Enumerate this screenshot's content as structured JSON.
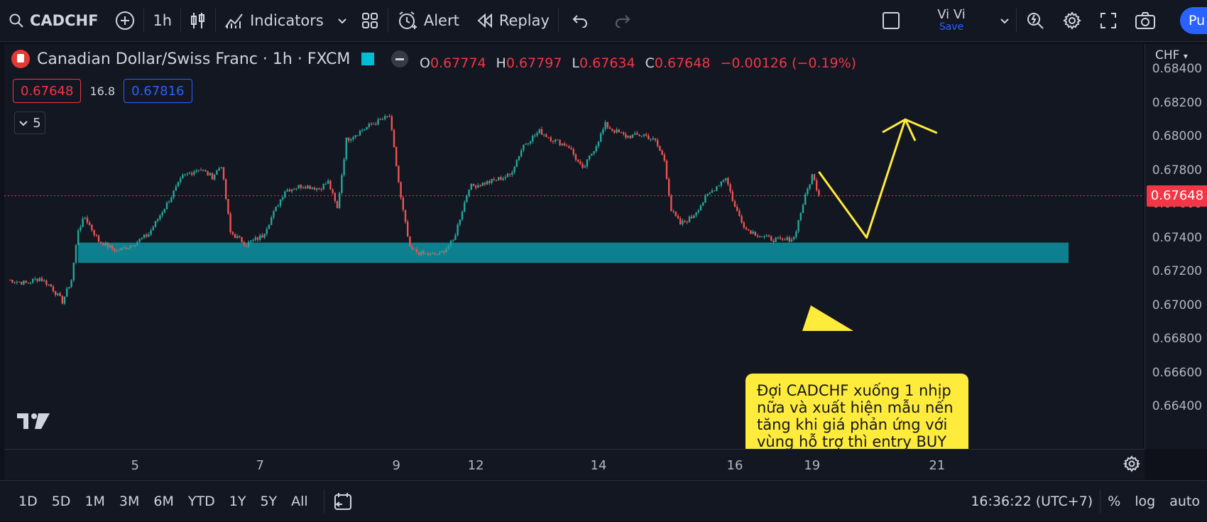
{
  "toolbar": {
    "symbol": "CADCHF",
    "interval": "1h",
    "indicators_label": "Indicators",
    "alert_label": "Alert",
    "replay_label": "Replay",
    "user_name": "Vi Vi",
    "save_label": "Save",
    "publish_label": "Pu"
  },
  "legend": {
    "title": "Canadian Dollar/Swiss Franc · 1h · FXCM",
    "ohlc": [
      {
        "k": "O",
        "v": "0.67774"
      },
      {
        "k": "H",
        "v": "0.67797"
      },
      {
        "k": "L",
        "v": "0.67634"
      },
      {
        "k": "C",
        "v": "0.67648"
      },
      {
        "k": "",
        "v": "−0.00126 (−0.19%)"
      }
    ],
    "sell_price": "0.67648",
    "spread": "16.8",
    "buy_price": "0.67816",
    "indicators_count": "5"
  },
  "price_axis": {
    "currency": "CHF",
    "current_price": "0.67648",
    "labels": [
      "0.68400",
      "0.68200",
      "0.68000",
      "0.67800",
      "0.67600",
      "0.67400",
      "0.67200",
      "0.67000",
      "0.66800",
      "0.66600",
      "0.66400"
    ]
  },
  "time_axis": {
    "labels": [
      "5",
      "7",
      "9",
      "12",
      "14",
      "16",
      "19",
      "21"
    ]
  },
  "annotation": {
    "text": "Đợi CADCHF xuống 1 nhịp nữa và xuất hiện mẫu nến tăng khi giá phản ứng với vùng hỗ trợ thì entry BUY lên."
  },
  "bottom_bar": {
    "ranges": [
      "1D",
      "5D",
      "1M",
      "3M",
      "6M",
      "YTD",
      "1Y",
      "5Y",
      "All"
    ],
    "clock": "16:36:22 (UTC+7)",
    "percent_label": "%",
    "log_label": "log",
    "auto_label": "auto"
  },
  "colors": {
    "up": "#26a69a",
    "down": "#ef5350",
    "zone": "#0e7f8f",
    "arrow": "#ffeb3b",
    "callout_bg": "#ffeb3b",
    "price_tag": "#f23645"
  },
  "chart_data": {
    "type": "candlestick",
    "symbol": "CADCHF",
    "interval": "1h",
    "ylim": [
      0.6635,
      0.6845
    ],
    "support_zone": [
      0.6725,
      0.6737
    ],
    "current_price": 0.67648,
    "x_labels": [
      "5",
      "7",
      "9",
      "12",
      "14",
      "16",
      "19",
      "21"
    ],
    "close_path": [
      [
        0,
        0.6715
      ],
      [
        8,
        0.6713
      ],
      [
        14,
        0.6716
      ],
      [
        19,
        0.6711
      ],
      [
        24,
        0.6702
      ],
      [
        28,
        0.6715
      ],
      [
        31,
        0.6745
      ],
      [
        34,
        0.6752
      ],
      [
        40,
        0.6738
      ],
      [
        48,
        0.6732
      ],
      [
        55,
        0.6736
      ],
      [
        62,
        0.6742
      ],
      [
        70,
        0.676
      ],
      [
        77,
        0.6776
      ],
      [
        84,
        0.6781
      ],
      [
        90,
        0.6776
      ],
      [
        94,
        0.6783
      ],
      [
        98,
        0.6743
      ],
      [
        105,
        0.6736
      ],
      [
        112,
        0.6741
      ],
      [
        122,
        0.6768
      ],
      [
        130,
        0.6771
      ],
      [
        137,
        0.6769
      ],
      [
        141,
        0.6773
      ],
      [
        145,
        0.6757
      ],
      [
        149,
        0.6798
      ],
      [
        160,
        0.6807
      ],
      [
        168,
        0.6812
      ],
      [
        173,
        0.6763
      ],
      [
        177,
        0.6733
      ],
      [
        183,
        0.673
      ],
      [
        190,
        0.673
      ],
      [
        196,
        0.6738
      ],
      [
        203,
        0.677
      ],
      [
        212,
        0.6773
      ],
      [
        221,
        0.6777
      ],
      [
        227,
        0.6795
      ],
      [
        234,
        0.6803
      ],
      [
        240,
        0.6798
      ],
      [
        247,
        0.6794
      ],
      [
        253,
        0.678
      ],
      [
        259,
        0.6795
      ],
      [
        263,
        0.6807
      ],
      [
        266,
        0.6804
      ],
      [
        272,
        0.68
      ],
      [
        280,
        0.6801
      ],
      [
        285,
        0.6797
      ],
      [
        289,
        0.6786
      ],
      [
        292,
        0.6756
      ],
      [
        296,
        0.6748
      ],
      [
        301,
        0.6752
      ],
      [
        308,
        0.6765
      ],
      [
        316,
        0.6776
      ],
      [
        320,
        0.6758
      ],
      [
        325,
        0.6745
      ],
      [
        333,
        0.674
      ],
      [
        341,
        0.6738
      ],
      [
        346,
        0.674
      ],
      [
        350,
        0.676
      ],
      [
        354,
        0.6777
      ],
      [
        357,
        0.6766
      ]
    ],
    "projection": [
      [
        357,
        0.6779
      ],
      [
        378,
        0.674
      ],
      [
        395,
        0.681
      ],
      [
        409,
        0.6802
      ]
    ]
  }
}
